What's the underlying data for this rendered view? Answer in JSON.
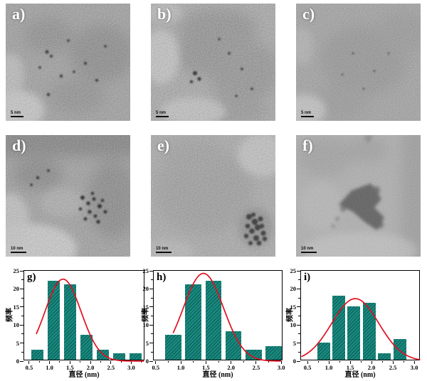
{
  "figure": {
    "description": "TEM micrographs with particle size distribution histograms",
    "tem_panels": [
      {
        "id": "a",
        "label": "a)",
        "scale_bar_text": "5 nm"
      },
      {
        "id": "b",
        "label": "b)",
        "scale_bar_text": "5 nm"
      },
      {
        "id": "c",
        "label": "c)",
        "scale_bar_text": "5 nm"
      },
      {
        "id": "d",
        "label": "d)",
        "scale_bar_text": "10 nm"
      },
      {
        "id": "e",
        "label": "e)",
        "scale_bar_text": "10 nm"
      },
      {
        "id": "f",
        "label": "f)",
        "scale_bar_text": "10 nm"
      }
    ]
  },
  "colors": {
    "bar_fill": "#1a8a80",
    "bar_hatch": "#0a5c54",
    "curve": "#e01020",
    "axis": "#000000"
  },
  "chart_data": [
    {
      "type": "bar",
      "panel_label": "g)",
      "xlabel": "直径 (nm)",
      "ylabel": "频率",
      "xlim": [
        0.38,
        3.34
      ],
      "ylim": [
        0,
        25
      ],
      "xticks": [
        0.5,
        1.0,
        1.5,
        2.0,
        2.5,
        3.0
      ],
      "xtick_labels": [
        "0.5",
        "1.0",
        "1.5",
        "2.0",
        "2.5",
        "3.0"
      ],
      "yticks": [
        0,
        5,
        10,
        15,
        20,
        25
      ],
      "ytick_labels": [
        "0",
        "5",
        "10",
        "15",
        "20",
        "25"
      ],
      "x_minor_step": 0.25,
      "y_minor_step": 2.5,
      "grid": false,
      "bin_centers": [
        0.7,
        1.1,
        1.5,
        1.9,
        2.3,
        2.7,
        3.1
      ],
      "bar_width": 0.3,
      "values": [
        3,
        22,
        21,
        7,
        3,
        2,
        2
      ],
      "fit_curve": {
        "shape": "gaussian",
        "peak_x": 1.33,
        "peak_y": 22.7,
        "sigma": 0.44,
        "x_start": 0.68,
        "x_end": 3.3
      }
    },
    {
      "type": "bar",
      "panel_label": "h)",
      "xlabel": "直径 (nm)",
      "ylabel": "频率",
      "xlim": [
        0.46,
        3.04
      ],
      "ylim": [
        0,
        25
      ],
      "xticks": [
        0.5,
        1.0,
        1.5,
        2.0,
        2.5,
        3.0
      ],
      "xtick_labels": [
        "0.5",
        "1.0",
        "1.5",
        "2.0",
        "2.5",
        "3.0"
      ],
      "yticks": [
        0,
        5,
        10,
        15,
        20,
        25
      ],
      "ytick_labels": [
        "0",
        "5",
        "10",
        "15",
        "20",
        "25"
      ],
      "x_minor_step": 0.25,
      "y_minor_step": 2.5,
      "grid": false,
      "bin_centers": [
        0.85,
        1.25,
        1.65,
        2.05,
        2.45,
        2.85
      ],
      "bar_width": 0.32,
      "values": [
        7,
        21,
        22,
        8,
        3,
        4
      ],
      "fit_curve": {
        "shape": "gaussian",
        "peak_x": 1.45,
        "peak_y": 24.3,
        "sigma": 0.4,
        "x_start": 0.85,
        "x_end": 2.99
      }
    },
    {
      "type": "bar",
      "panel_label": "i)",
      "xlabel": "直径 (nm)",
      "ylabel": "频率",
      "xlim": [
        0.35,
        3.15
      ],
      "ylim": [
        0,
        25
      ],
      "xticks": [
        0.5,
        1.0,
        1.5,
        2.0,
        2.5,
        3.0
      ],
      "xtick_labels": [
        "0.5",
        "1.0",
        "1.5",
        "2.0",
        "2.5",
        "3.0"
      ],
      "yticks": [
        0,
        5,
        10,
        15,
        20,
        25
      ],
      "ytick_labels": [
        "0",
        "5",
        "10",
        "15",
        "20",
        "25"
      ],
      "x_minor_step": 0.25,
      "y_minor_step": 2.5,
      "grid": false,
      "bin_centers": [
        0.88,
        1.24,
        1.59,
        1.95,
        2.3,
        2.66
      ],
      "bar_width": 0.3,
      "values": [
        5,
        18,
        15,
        16,
        2,
        6
      ],
      "fit_curve": {
        "shape": "gaussian",
        "peak_x": 1.62,
        "peak_y": 17.3,
        "sigma": 0.55,
        "x_start": 0.37,
        "x_end": 3.13
      }
    }
  ]
}
